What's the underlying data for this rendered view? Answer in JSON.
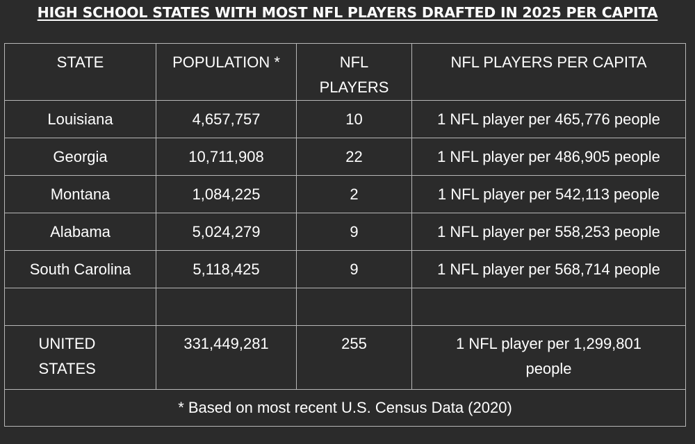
{
  "title": "HIGH SCHOOL STATES WITH MOST NFL PLAYERS DRAFTED IN 2025 PER CAPITA",
  "chart_data": {
    "type": "table",
    "columns": [
      "STATE",
      "POPULATION *",
      "NFL PLAYERS",
      "NFL PLAYERS PER CAPITA"
    ],
    "rows": [
      {
        "state": "Louisiana",
        "population": "4,657,757",
        "nfl_players": "10",
        "per_capita": "1 NFL player per 465,776 people"
      },
      {
        "state": "Georgia",
        "population": "10,711,908",
        "nfl_players": "22",
        "per_capita": "1 NFL player per 486,905 people"
      },
      {
        "state": "Montana",
        "population": "1,084,225",
        "nfl_players": "2",
        "per_capita": "1 NFL player per 542,113 people"
      },
      {
        "state": "Alabama",
        "population": "5,024,279",
        "nfl_players": "9",
        "per_capita": "1 NFL player per 558,253 people"
      },
      {
        "state": "South Carolina",
        "population": "5,118,425",
        "nfl_players": "9",
        "per_capita": "1 NFL player per 568,714 people"
      }
    ],
    "total": {
      "state": "UNITED STATES",
      "population": "331,449,281",
      "nfl_players": "255",
      "per_capita": "1 NFL player per 1,299,801 people"
    },
    "footnote": "* Based on most recent U.S. Census Data (2020)"
  }
}
